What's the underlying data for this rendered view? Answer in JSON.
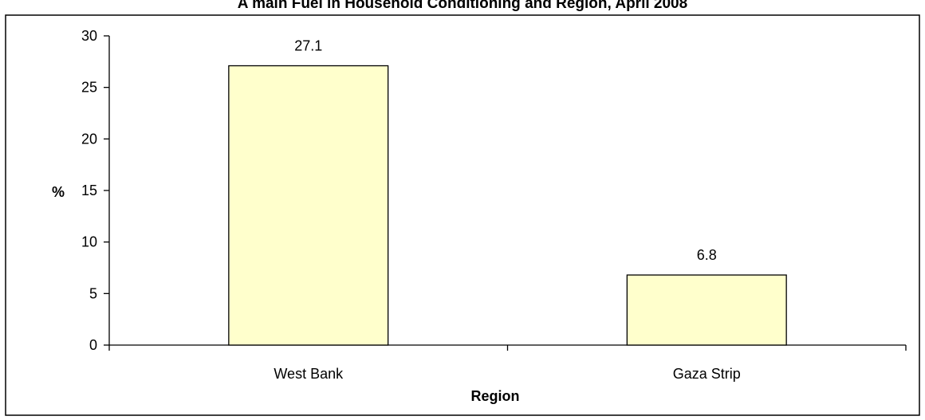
{
  "chart_data": {
    "type": "bar",
    "title": "A main Fuel in Household Conditioning and Region,  April 2008",
    "xlabel": "Region",
    "ylabel": "%",
    "categories": [
      "West Bank",
      "Gaza Strip"
    ],
    "values": [
      27.1,
      6.8
    ],
    "data_labels": [
      "27.1",
      "6.8"
    ],
    "ylim": [
      0,
      30
    ],
    "yticks": [
      "0",
      "5",
      "10",
      "15",
      "20",
      "25",
      "30"
    ],
    "grid": false,
    "legend": "none",
    "bar_color": "#FFFFCC",
    "bar_stroke": "#000000"
  }
}
